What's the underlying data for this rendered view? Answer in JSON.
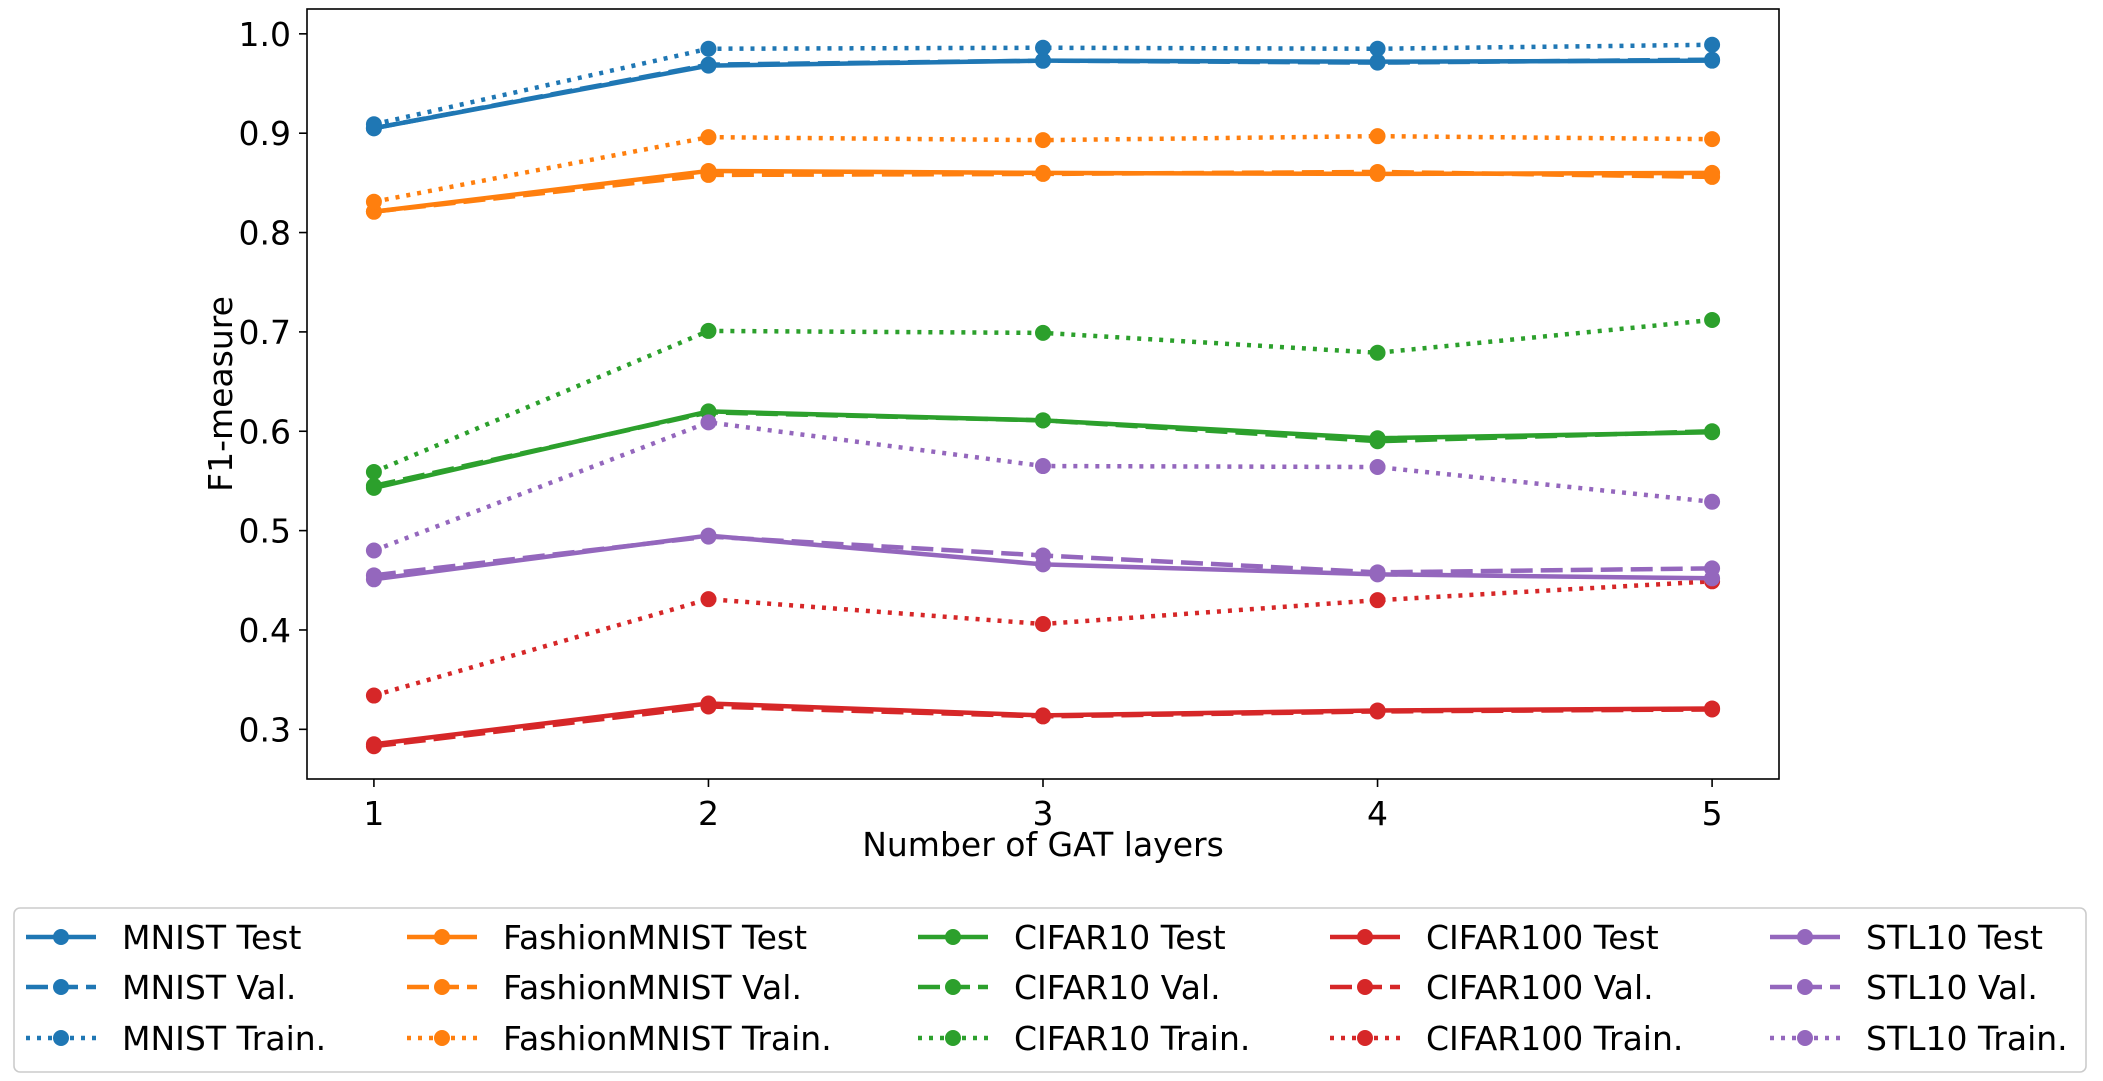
{
  "chart_data": {
    "type": "line",
    "xlabel": "Number of GAT layers",
    "ylabel": "F1-measure",
    "x": [
      1,
      2,
      3,
      4,
      5
    ],
    "xlim": [
      0.8,
      5.2
    ],
    "ylim": [
      0.25,
      1.025
    ],
    "xticks": [
      "1",
      "2",
      "3",
      "4",
      "5"
    ],
    "yticks": [
      "0.3",
      "0.4",
      "0.5",
      "0.6",
      "0.7",
      "0.8",
      "0.9",
      "1.0"
    ],
    "grid": false,
    "legend_placement": "bottom",
    "series": [
      {
        "name": "MNIST Test",
        "style": "solid",
        "color": "#1f77b4",
        "values": [
          0.905,
          0.968,
          0.973,
          0.972,
          0.973
        ]
      },
      {
        "name": "MNIST Val.",
        "style": "dashed",
        "color": "#1f77b4",
        "values": [
          0.905,
          0.969,
          0.973,
          0.971,
          0.974
        ]
      },
      {
        "name": "MNIST Train.",
        "style": "dotted",
        "color": "#1f77b4",
        "values": [
          0.909,
          0.985,
          0.986,
          0.985,
          0.989
        ]
      },
      {
        "name": "FashionMNIST Test",
        "style": "solid",
        "color": "#ff7f0e",
        "values": [
          0.821,
          0.862,
          0.86,
          0.859,
          0.86
        ]
      },
      {
        "name": "FashionMNIST Val.",
        "style": "dashed",
        "color": "#ff7f0e",
        "values": [
          0.821,
          0.858,
          0.859,
          0.861,
          0.856
        ]
      },
      {
        "name": "FashionMNIST Train.",
        "style": "dotted",
        "color": "#ff7f0e",
        "values": [
          0.831,
          0.896,
          0.893,
          0.897,
          0.894
        ]
      },
      {
        "name": "CIFAR10 Test",
        "style": "solid",
        "color": "#2ca02c",
        "values": [
          0.543,
          0.62,
          0.611,
          0.593,
          0.599
        ]
      },
      {
        "name": "CIFAR10 Val.",
        "style": "dashed",
        "color": "#2ca02c",
        "values": [
          0.545,
          0.619,
          0.611,
          0.59,
          0.6
        ]
      },
      {
        "name": "CIFAR10 Train.",
        "style": "dotted",
        "color": "#2ca02c",
        "values": [
          0.559,
          0.701,
          0.699,
          0.679,
          0.712
        ]
      },
      {
        "name": "CIFAR100 Test",
        "style": "solid",
        "color": "#d62728",
        "values": [
          0.285,
          0.326,
          0.314,
          0.319,
          0.321
        ]
      },
      {
        "name": "CIFAR100 Val.",
        "style": "dashed",
        "color": "#d62728",
        "values": [
          0.283,
          0.323,
          0.313,
          0.318,
          0.32
        ]
      },
      {
        "name": "CIFAR100 Train.",
        "style": "dotted",
        "color": "#d62728",
        "values": [
          0.334,
          0.431,
          0.406,
          0.43,
          0.449
        ]
      },
      {
        "name": "STL10 Test",
        "style": "solid",
        "color": "#9467bd",
        "values": [
          0.451,
          0.495,
          0.466,
          0.456,
          0.452
        ]
      },
      {
        "name": "STL10 Val.",
        "style": "dashed",
        "color": "#9467bd",
        "values": [
          0.455,
          0.494,
          0.475,
          0.458,
          0.462
        ]
      },
      {
        "name": "STL10 Train.",
        "style": "dotted",
        "color": "#9467bd",
        "values": [
          0.48,
          0.609,
          0.565,
          0.564,
          0.529
        ]
      }
    ]
  }
}
